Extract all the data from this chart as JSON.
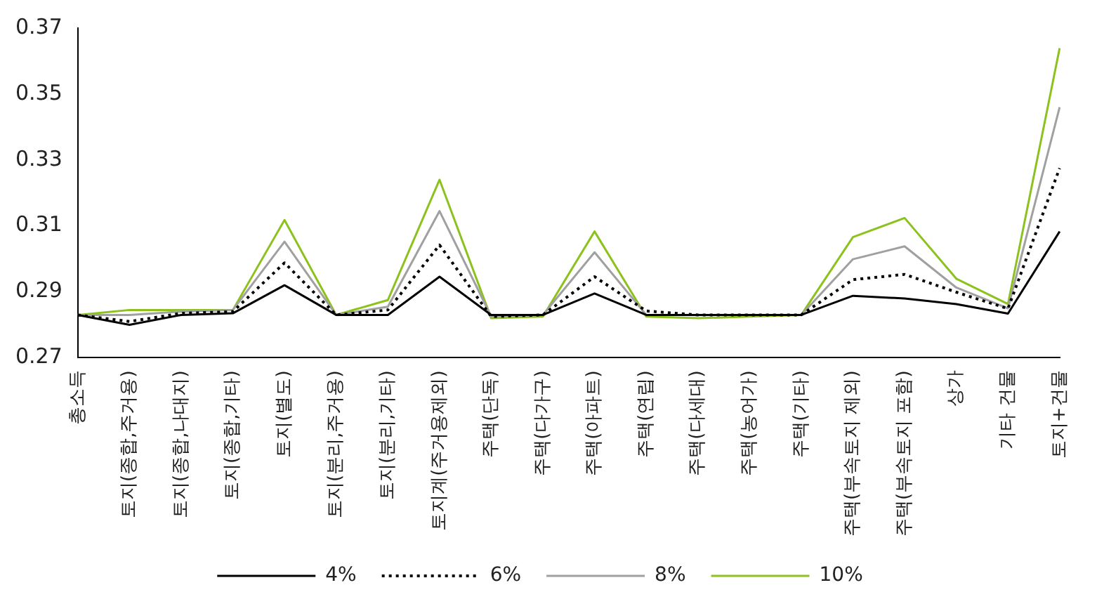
{
  "chart_data": {
    "type": "line",
    "categories": [
      "총소득",
      "토지(종합,주거용)",
      "토지(종합,나대지)",
      "토지(종합,기타)",
      "토지(별도)",
      "토지(분리,주거용)",
      "토지(분리,기타)",
      "토지계(주거용제외)",
      "주택(단독)",
      "주택(다가구)",
      "주택(아파트)",
      "주택(연립)",
      "주택(다세대)",
      "주택(농어가)",
      "주택(기타)",
      "주택(부속토지 제외)",
      "주택(부속토지 포함)",
      "상가",
      "기타 건물",
      "토지+건물"
    ],
    "series": [
      {
        "name": "4%",
        "color": "#000000",
        "line_style": "solid",
        "values": [
          0.283,
          0.28,
          0.283,
          0.2835,
          0.292,
          0.283,
          0.283,
          0.2946,
          0.283,
          0.283,
          0.2895,
          0.283,
          0.283,
          0.283,
          0.283,
          0.2888,
          0.288,
          0.2863,
          0.2834,
          0.3083
        ]
      },
      {
        "name": "6%",
        "color": "#000000",
        "line_style": "dotted",
        "values": [
          0.283,
          0.281,
          0.2835,
          0.284,
          0.2988,
          0.283,
          0.2845,
          0.3042,
          0.2825,
          0.283,
          0.2946,
          0.2842,
          0.283,
          0.283,
          0.283,
          0.2937,
          0.2953,
          0.2899,
          0.2849,
          0.3275
        ]
      },
      {
        "name": "8%",
        "color": "#a0a0a0",
        "line_style": "solid",
        "values": [
          0.283,
          0.283,
          0.284,
          0.2845,
          0.3052,
          0.283,
          0.2855,
          0.3145,
          0.2825,
          0.283,
          0.302,
          0.283,
          0.283,
          0.283,
          0.283,
          0.2999,
          0.3038,
          0.2913,
          0.285,
          0.346
        ]
      },
      {
        "name": "10%",
        "color": "#8cc21e",
        "line_style": "solid",
        "values": [
          0.283,
          0.2845,
          0.2845,
          0.2845,
          0.3118,
          0.283,
          0.2875,
          0.324,
          0.282,
          0.2825,
          0.3083,
          0.2825,
          0.282,
          0.2825,
          0.283,
          0.3066,
          0.3124,
          0.294,
          0.2863,
          0.3639
        ]
      }
    ],
    "ylim": [
      0.27,
      0.37
    ],
    "yticks": [
      0.27,
      0.29,
      0.31,
      0.33,
      0.35,
      0.37
    ],
    "grid": false,
    "legend": "bottom",
    "marker": "none"
  }
}
